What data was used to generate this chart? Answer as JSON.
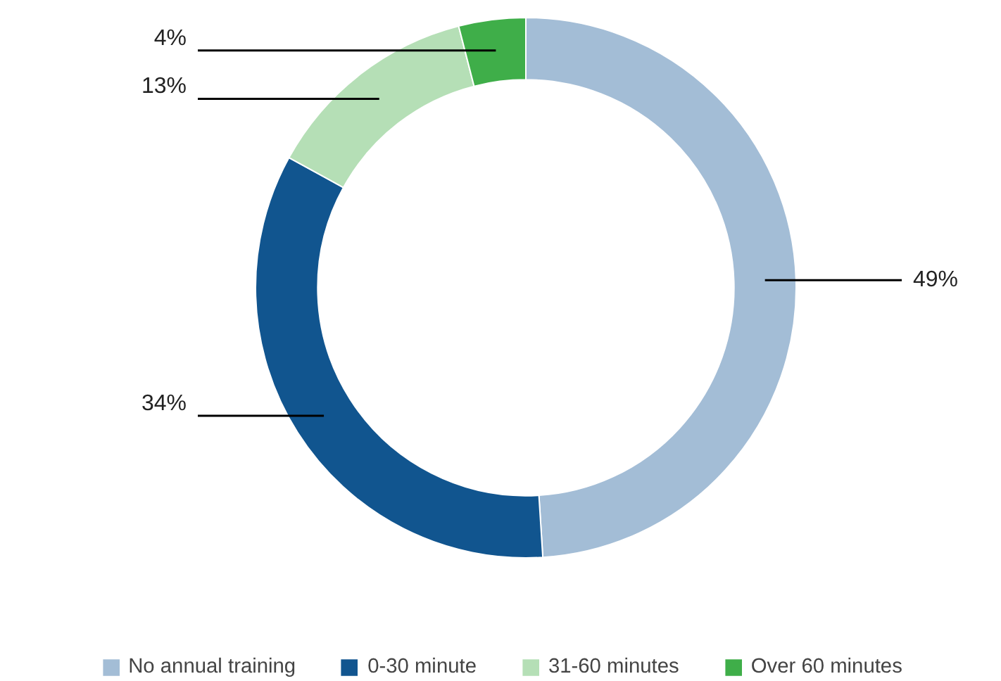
{
  "chart_data": {
    "type": "donut",
    "categories": [
      "No annual training",
      "0-30 minute",
      "31-60 minutes",
      "Over 60 minutes"
    ],
    "values": [
      49,
      34,
      13,
      4
    ],
    "colors": [
      "#a3bdd6",
      "#11558f",
      "#b5dfb6",
      "#3fae49"
    ],
    "value_labels": [
      "49%",
      "34%",
      "13%",
      "4%"
    ],
    "legend": "bottom"
  }
}
